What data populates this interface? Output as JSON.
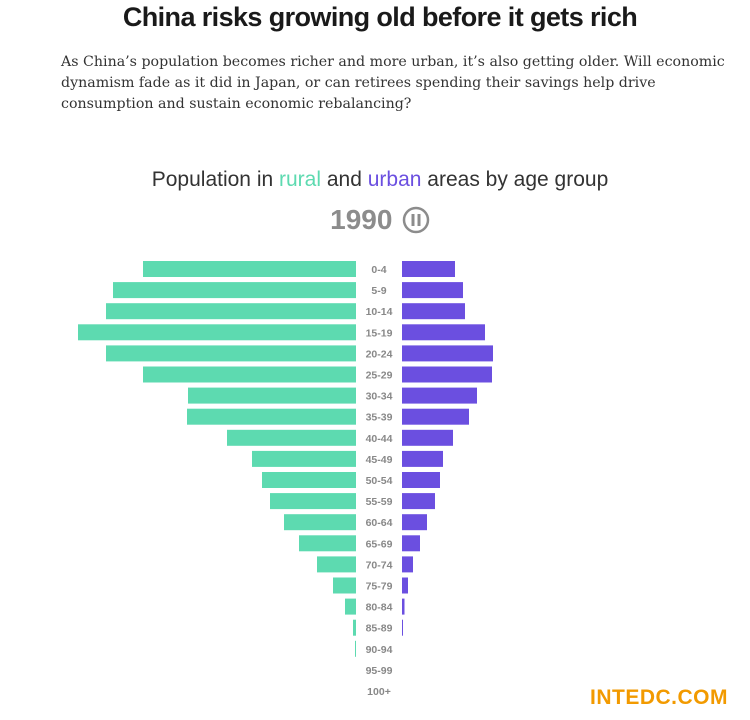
{
  "header": {
    "title": "China risks growing old before it gets rich",
    "intro": "As China’s population becomes richer and more urban, it’s also getting older. Will economic dynamism fade as it did in Japan, or can retirees spending their savings help drive consumption and sustain economic rebalancing?"
  },
  "chart_heading": {
    "prefix": "Population in ",
    "rural": "rural",
    "middle": " and ",
    "urban": "urban",
    "suffix": " areas by age group"
  },
  "controls": {
    "year": "1990",
    "pause_icon": "pause-icon"
  },
  "colors": {
    "rural": "#5ddab0",
    "urban": "#6b4fe0"
  },
  "chart_data": {
    "type": "bar",
    "orientation": "horizontal-diverging",
    "categories": [
      "0-4",
      "5-9",
      "10-14",
      "15-19",
      "20-24",
      "25-29",
      "30-34",
      "35-39",
      "40-44",
      "45-49",
      "50-54",
      "55-59",
      "60-64",
      "65-69",
      "70-74",
      "75-79",
      "80-84",
      "85-89",
      "90-94",
      "95-99",
      "100+"
    ],
    "series": [
      {
        "name": "rural",
        "values": [
          213,
          243,
          250,
          278,
          250,
          213,
          168,
          169,
          129,
          104,
          94,
          86,
          72,
          57,
          39,
          23,
          11,
          3,
          1,
          0,
          0
        ]
      },
      {
        "name": "urban",
        "values": [
          53,
          61,
          63,
          83,
          91,
          90,
          75,
          67,
          51,
          41,
          38,
          33,
          25,
          18,
          11,
          6,
          2.5,
          1,
          0,
          0,
          0
        ]
      }
    ],
    "year": "1990"
  },
  "watermark": "INTEDC.COM"
}
